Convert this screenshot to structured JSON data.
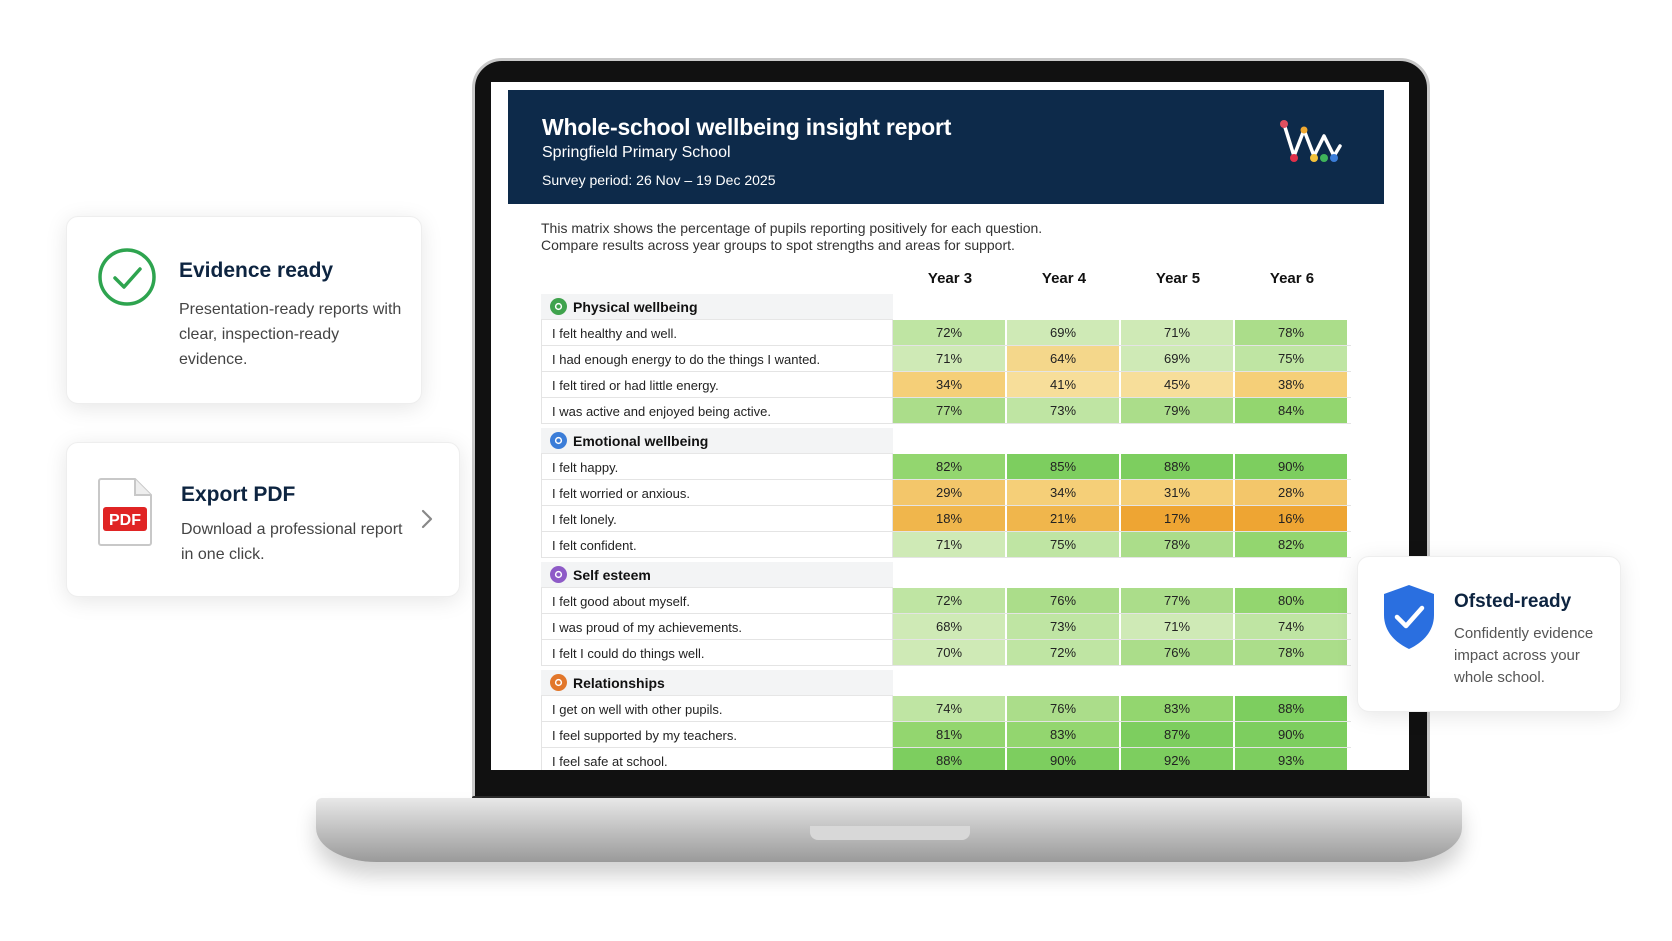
{
  "report": {
    "title": "Whole-school wellbeing insight report",
    "school": "Springfield Primary School",
    "period": "Survey period: 26 Nov – 19 Dec 2025",
    "intro_line1": "This matrix shows the percentage of pupils reporting positively for each question.",
    "intro_line2": "Compare results across year groups to spot strengths and areas for support."
  },
  "columns": [
    "Year 3",
    "Year 4",
    "Year 5",
    "Year 6"
  ],
  "categories": [
    {
      "name": "Physical wellbeing",
      "color": "#3fa34d",
      "icon": "heart-icon",
      "questions": [
        {
          "text": "I felt healthy and well.",
          "values": [
            "72%",
            "69%",
            "71%",
            "78%"
          ]
        },
        {
          "text": "I had enough energy to do the things I wanted.",
          "values": [
            "71%",
            "64%",
            "69%",
            "75%"
          ]
        },
        {
          "text": "I felt tired or had little energy.",
          "values": [
            "34%",
            "41%",
            "45%",
            "38%"
          ]
        },
        {
          "text": "I was active and enjoyed being active.",
          "values": [
            "77%",
            "73%",
            "79%",
            "84%"
          ]
        }
      ]
    },
    {
      "name": "Emotional wellbeing",
      "color": "#3b7dd8",
      "icon": "face-icon",
      "questions": [
        {
          "text": "I felt happy.",
          "values": [
            "82%",
            "85%",
            "88%",
            "90%"
          ]
        },
        {
          "text": "I felt worried or anxious.",
          "values": [
            "29%",
            "34%",
            "31%",
            "28%"
          ]
        },
        {
          "text": "I felt lonely.",
          "values": [
            "18%",
            "21%",
            "17%",
            "16%"
          ]
        },
        {
          "text": "I felt confident.",
          "values": [
            "71%",
            "75%",
            "78%",
            "82%"
          ]
        }
      ]
    },
    {
      "name": "Self esteem",
      "color": "#8e5bc7",
      "icon": "star-icon",
      "questions": [
        {
          "text": "I felt good about myself.",
          "values": [
            "72%",
            "76%",
            "77%",
            "80%"
          ]
        },
        {
          "text": "I was proud of my achievements.",
          "values": [
            "68%",
            "73%",
            "71%",
            "74%"
          ]
        },
        {
          "text": "I felt I could do things well.",
          "values": [
            "70%",
            "72%",
            "76%",
            "78%"
          ]
        }
      ]
    },
    {
      "name": "Relationships",
      "color": "#e2772b",
      "icon": "people-icon",
      "questions": [
        {
          "text": "I get on well with other pupils.",
          "values": [
            "74%",
            "76%",
            "83%",
            "88%"
          ]
        },
        {
          "text": "I feel supported by my teachers.",
          "values": [
            "81%",
            "83%",
            "87%",
            "90%"
          ]
        },
        {
          "text": "I feel safe at school.",
          "values": [
            "88%",
            "90%",
            "92%",
            "93%"
          ]
        }
      ]
    }
  ],
  "cards": {
    "evidence": {
      "title": "Evidence ready",
      "text": "Presentation-ready reports with clear, inspection-ready evidence."
    },
    "export": {
      "title": "Export PDF",
      "text": "Download a professional report in one click.",
      "pdf_label": "PDF"
    },
    "ofsted": {
      "title": "Ofsted-ready",
      "text": "Confidently evidence impact across your whole school."
    }
  },
  "colors": {
    "header_bg": "#0d2a4a",
    "accent_green": "#2ea44f",
    "shield_blue": "#2a6fe0",
    "pdf_red": "#e02424"
  }
}
